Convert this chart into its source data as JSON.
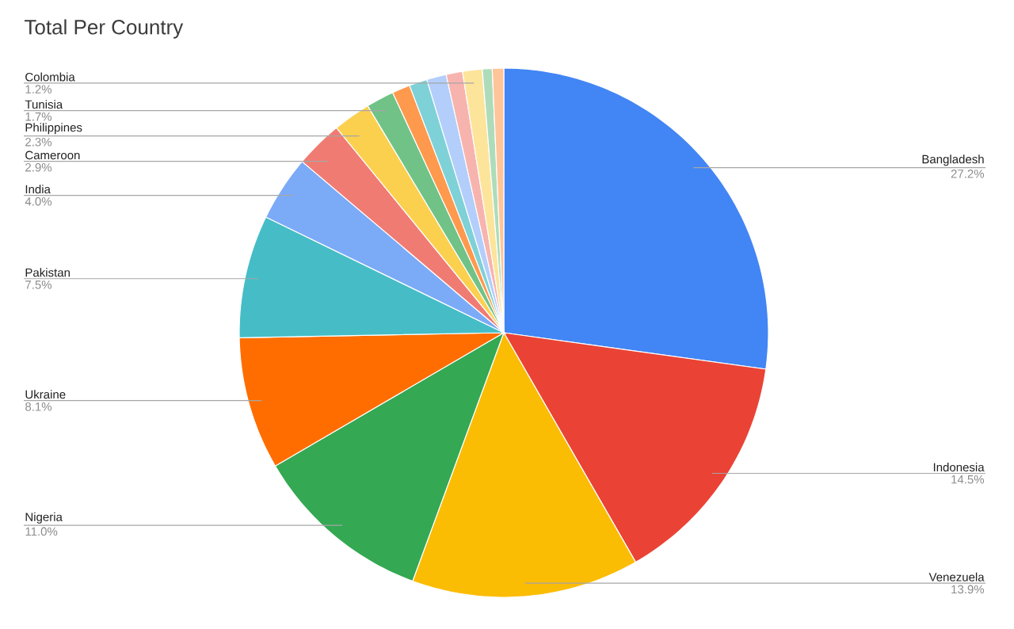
{
  "chart_data": {
    "type": "pie",
    "title": "Total Per Country",
    "categories": [
      "Bangladesh",
      "Indonesia",
      "Venezuela",
      "Nigeria",
      "Ukraine",
      "Pakistan",
      "India",
      "Cameroon",
      "Philippines",
      "Tunisia",
      null,
      null,
      null,
      null,
      "Colombia",
      null,
      null
    ],
    "values": [
      27.2,
      14.5,
      13.9,
      11.0,
      8.1,
      7.5,
      4.0,
      2.9,
      2.3,
      1.7,
      1.1,
      1.1,
      1.2,
      1.0,
      1.2,
      0.6,
      0.7
    ],
    "value_labels": [
      "27.2%",
      "14.5%",
      "13.9%",
      "11.0%",
      "8.1%",
      "7.5%",
      "4.0%",
      "2.9%",
      "2.3%",
      "1.7%",
      null,
      null,
      null,
      null,
      "1.2%",
      null,
      null
    ],
    "colors": [
      "#4285f4",
      "#ea4335",
      "#fbbc04",
      "#34a853",
      "#ff6d01",
      "#46bdc6",
      "#7baaf7",
      "#f07b72",
      "#fcd04f",
      "#71c287",
      "#ff994d",
      "#7ed1d7",
      "#b3cefb",
      "#f7b4ae",
      "#fde49b",
      "#aedcba",
      "#ffc599"
    ]
  }
}
